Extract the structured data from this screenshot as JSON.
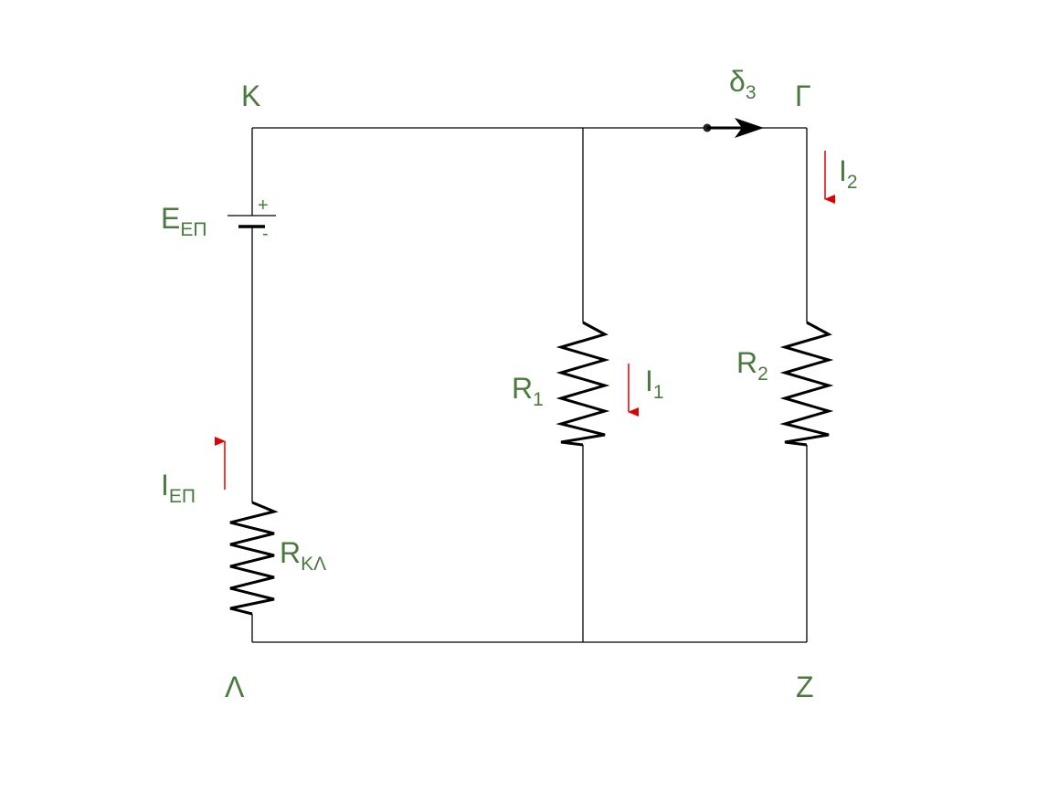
{
  "nodes": {
    "K": "Κ",
    "G": "Γ",
    "L": "Λ",
    "Z": "Ζ"
  },
  "battery": {
    "symbol": "E",
    "subscript": "ΕΠ",
    "plus": "+",
    "minus": "-"
  },
  "resistors": {
    "rkl": {
      "symbol": "R",
      "subscript": "ΚΛ"
    },
    "r1": {
      "symbol": "R",
      "subscript": "1"
    },
    "r2": {
      "symbol": "R",
      "subscript": "2"
    }
  },
  "currents": {
    "iep": {
      "symbol": "I",
      "subscript": "ΕΠ"
    },
    "i1": {
      "symbol": "I",
      "subscript": "1"
    },
    "i2": {
      "symbol": "I",
      "subscript": "2"
    }
  },
  "switch": {
    "symbol": "δ",
    "subscript": "3"
  },
  "colors": {
    "label": "#4a7a3d",
    "current_arrow": "#e00000",
    "wire": "#000000"
  }
}
